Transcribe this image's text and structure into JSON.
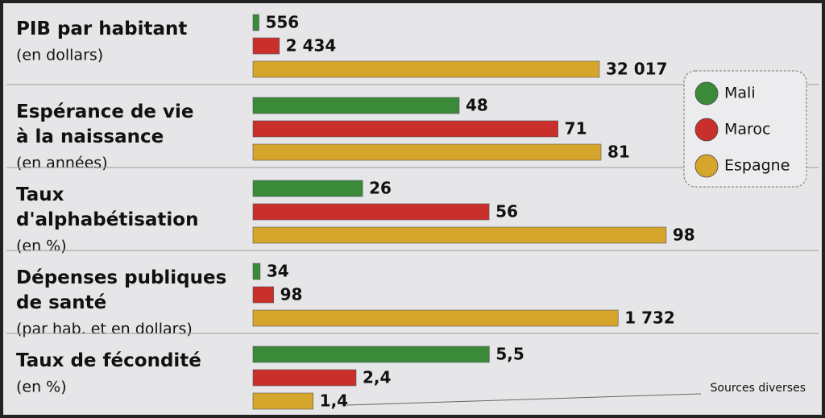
{
  "chart_data": {
    "type": "bar",
    "panels": [
      {
        "title": "PIB par habitant",
        "subtitle": "(en dollars)",
        "xlim": [
          0,
          41700
        ]
      },
      {
        "title": "Espérance de vie\nà la naissance",
        "subtitle": "(en années)",
        "xlim": [
          0,
          105
        ]
      },
      {
        "title": "Taux\nd'alphabétisation",
        "subtitle": "(en %)",
        "xlim": [
          0,
          107
        ]
      },
      {
        "title": "Dépenses publiques\nde santé",
        "subtitle": "(par hab. et en dollars)",
        "xlim": [
          0,
          2140
        ]
      },
      {
        "title": "Taux de fécondité",
        "subtitle": "(en %)",
        "xlim": [
          0,
          10.5
        ]
      }
    ],
    "series": [
      {
        "name": "Mali",
        "color": "#3b8a3a",
        "values": [
          556,
          48,
          26,
          34,
          5.5
        ],
        "value_labels": [
          "556",
          "48",
          "26",
          "34",
          "5,5"
        ]
      },
      {
        "name": "Maroc",
        "color": "#c9302c",
        "values": [
          2434,
          71,
          56,
          98,
          2.4
        ],
        "value_labels": [
          "2 434",
          "71",
          "56",
          "98",
          "2,4"
        ]
      },
      {
        "name": "Espagne",
        "color": "#d6a52b",
        "values": [
          32017,
          81,
          98,
          1732,
          1.4
        ],
        "value_labels": [
          "32 017",
          "81",
          "98",
          "1 732",
          "1,4"
        ]
      }
    ],
    "source": "Sources diverses"
  }
}
